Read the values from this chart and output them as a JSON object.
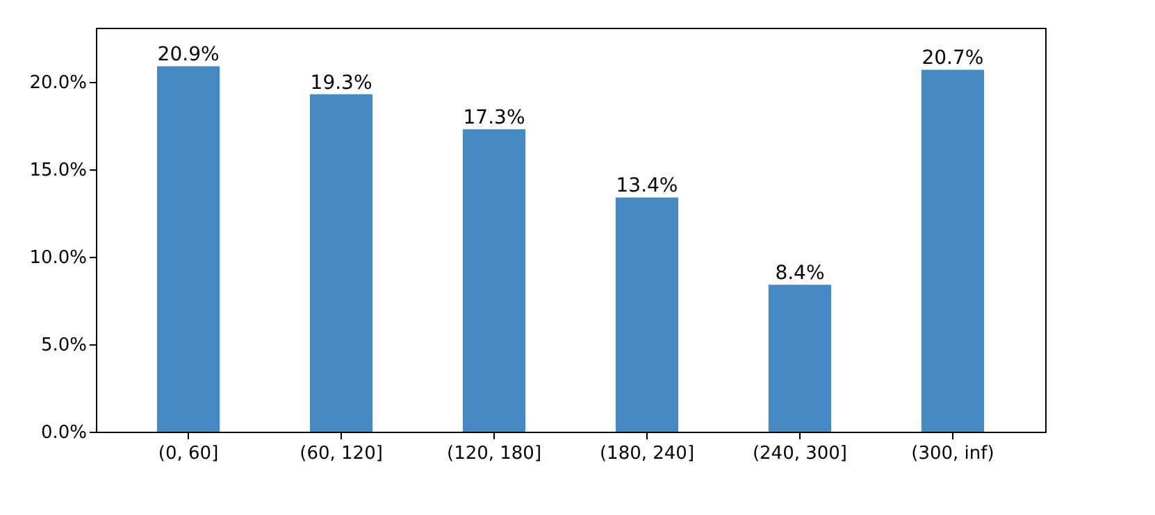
{
  "chart_data": {
    "type": "bar",
    "categories": [
      "(0, 60]",
      "(60, 120]",
      "(120, 180]",
      "(180, 240]",
      "(240, 300]",
      "(300, inf)"
    ],
    "values": [
      20.9,
      19.3,
      17.3,
      13.4,
      8.4,
      20.7
    ],
    "value_labels": [
      "20.9%",
      "19.3%",
      "17.3%",
      "13.4%",
      "8.4%",
      "20.7%"
    ],
    "color": "#4689c4",
    "ylim": [
      0,
      23.1
    ],
    "yticks": [
      {
        "value": 0,
        "label": "0.0%"
      },
      {
        "value": 5,
        "label": "5.0%"
      },
      {
        "value": 10,
        "label": "10.0%"
      },
      {
        "value": 15,
        "label": "15.0%"
      },
      {
        "value": 20,
        "label": "20.0%"
      }
    ],
    "grid": false
  }
}
